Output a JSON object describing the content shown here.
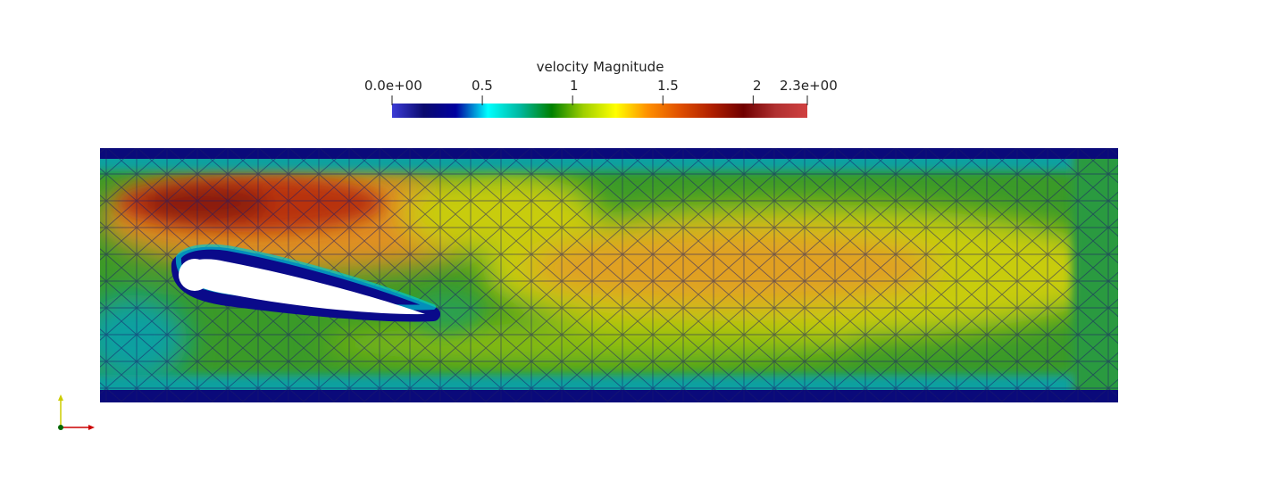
{
  "legend": {
    "title": "velocity Magnitude",
    "range": [
      0.0,
      2.3
    ],
    "ticks": [
      {
        "value": 0.0,
        "label": "0.0e+00"
      },
      {
        "value": 0.5,
        "label": "0.5"
      },
      {
        "value": 1.0,
        "label": "1"
      },
      {
        "value": 1.5,
        "label": "1.5"
      },
      {
        "value": 2.0,
        "label": "2"
      },
      {
        "value": 2.3,
        "label": "2.3e+00"
      }
    ],
    "colormap": [
      "#3b3bd6",
      "#0a0a6e",
      "#0000a0",
      "#00ffff",
      "#00b8a0",
      "#008000",
      "#a0d000",
      "#ffff00",
      "#ff9000",
      "#e05000",
      "#b02000",
      "#700000",
      "#b03030",
      "#d04040"
    ]
  },
  "colors": {
    "low": "#0a0a7a",
    "mid": "#0aa0a0",
    "green": "#3a9a28",
    "yellow": "#c8cc10",
    "orange": "#e08820",
    "high": "#b83010",
    "mesh": "#1a1a6a",
    "axis_x": "#cc0000",
    "axis_y": "#cccc00",
    "axis_z": "#006600"
  }
}
